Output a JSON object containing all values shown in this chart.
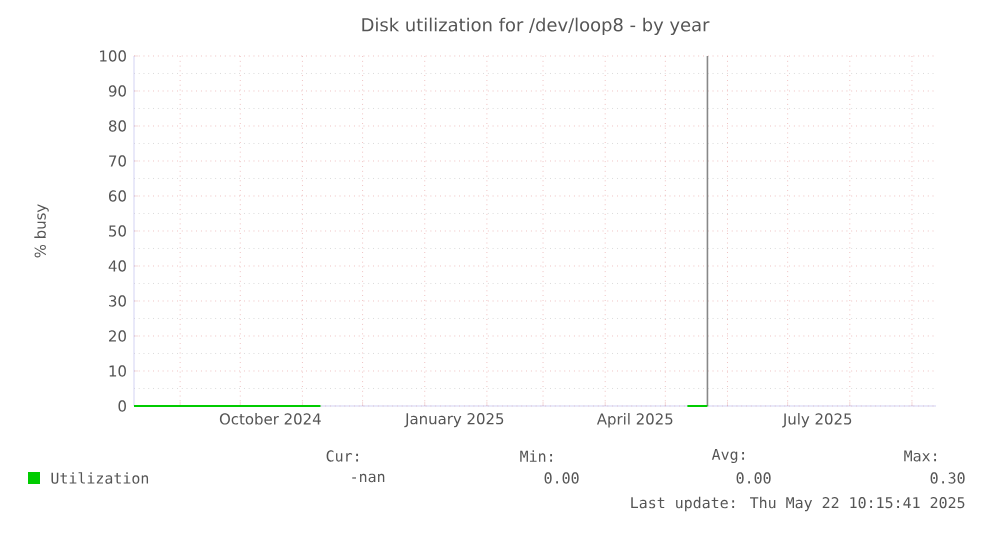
{
  "chart_data": {
    "type": "line",
    "title": "Disk utilization for /dev/loop8 - by year",
    "ylabel": "% busy",
    "x": [
      "2024-08-09",
      "2024-11-10",
      "2024-11-11",
      "2025-05-12",
      "2025-05-22"
    ],
    "series": [
      {
        "name": "Utilization",
        "color": "#00cc00",
        "values": [
          0,
          0,
          null,
          0,
          0
        ]
      }
    ],
    "xlim": [
      "2024-08-09",
      "2025-09-13"
    ],
    "xticks": [
      {
        "value": "2024-09-01",
        "label": null
      },
      {
        "value": "2024-10-01",
        "label": null
      },
      {
        "value": "2024-11-01",
        "label": null
      },
      {
        "value": "2024-12-01",
        "label": null
      },
      {
        "value": "2025-01-01",
        "label": null
      },
      {
        "value": "2025-02-01",
        "label": null
      },
      {
        "value": "2025-03-01",
        "label": null
      },
      {
        "value": "2025-04-01",
        "label": null
      },
      {
        "value": "2025-05-01",
        "label": null
      },
      {
        "value": "2025-06-01",
        "label": null
      },
      {
        "value": "2025-07-01",
        "label": null
      },
      {
        "value": "2025-08-01",
        "label": null
      },
      {
        "value": "2025-09-01",
        "label": null
      },
      {
        "value": "2024-10-16",
        "label": "October 2024"
      },
      {
        "value": "2025-01-16",
        "label": "January 2025"
      },
      {
        "value": "2025-04-16",
        "label": "April 2025"
      },
      {
        "value": "2025-07-16",
        "label": "July 2025"
      }
    ],
    "ylim": [
      0,
      100
    ],
    "yticks": [
      0,
      10,
      20,
      30,
      40,
      50,
      60,
      70,
      80,
      90,
      100
    ],
    "grid": true,
    "legend": "bottom left",
    "marker": "none",
    "line_style": "solid",
    "ref_lines": [
      {
        "axis": "x",
        "value": "2025-05-22",
        "color": "#888888"
      }
    ],
    "annotations": [
      "Cur:",
      "Min:",
      "Avg:",
      "Max:",
      "-nan",
      "0.00",
      "0.00",
      "0.30",
      "Last update: Thu May 22 10:15:41 2025"
    ]
  }
}
